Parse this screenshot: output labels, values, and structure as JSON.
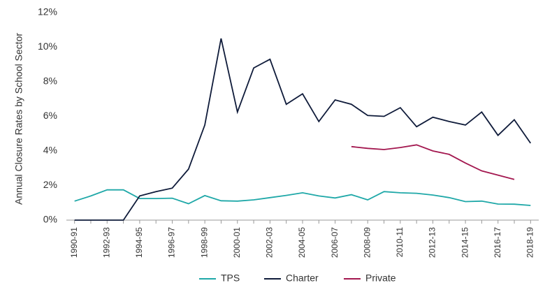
{
  "chart_data": {
    "type": "line",
    "y_label": "Annual Closure Rates by School Sector",
    "categories": [
      "1990-91",
      null,
      "1992-93",
      null,
      "1994-95",
      null,
      "1996-97",
      null,
      "1998-99",
      null,
      "2000-01",
      null,
      "2002-03",
      null,
      "2004-05",
      null,
      "2006-07",
      null,
      "2008-09",
      null,
      "2010-11",
      null,
      "2012-13",
      null,
      "2014-15",
      null,
      "2016-17",
      null,
      "2018-19"
    ],
    "series": [
      {
        "name": "TPS",
        "color": "#1fa8a8",
        "values": [
          1.1,
          1.4,
          1.75,
          1.75,
          1.25,
          1.25,
          1.27,
          0.95,
          1.42,
          1.12,
          1.1,
          1.17,
          1.3,
          1.43,
          1.58,
          1.4,
          1.28,
          1.47,
          1.17,
          1.65,
          1.58,
          1.55,
          1.45,
          1.3,
          1.07,
          1.1,
          0.93,
          0.92,
          0.85
        ]
      },
      {
        "name": "Charter",
        "color": "#0f1b3a",
        "values": [
          0,
          0,
          0,
          0,
          1.4,
          1.65,
          1.85,
          2.95,
          5.5,
          10.5,
          6.25,
          8.8,
          9.3,
          6.7,
          7.3,
          5.7,
          6.95,
          6.7,
          6.05,
          6.0,
          6.5,
          5.4,
          5.95,
          5.7,
          5.5,
          6.25,
          4.9,
          5.8,
          4.45
        ]
      },
      {
        "name": "Private",
        "color": "#a3174f",
        "values": [
          null,
          null,
          null,
          null,
          null,
          null,
          null,
          null,
          null,
          null,
          null,
          null,
          null,
          null,
          null,
          null,
          null,
          4.25,
          4.15,
          4.08,
          4.2,
          4.35,
          4.0,
          3.8,
          3.3,
          2.85,
          2.6,
          2.35,
          null
        ]
      }
    ],
    "ylim": [
      0,
      12
    ],
    "yticks": [
      {
        "value": 0,
        "label": "0%"
      },
      {
        "value": 2,
        "label": "2%"
      },
      {
        "value": 4,
        "label": "4%"
      },
      {
        "value": 6,
        "label": "6%"
      },
      {
        "value": 8,
        "label": "8%"
      },
      {
        "value": 10,
        "label": "10%"
      },
      {
        "value": 12,
        "label": "12%"
      }
    ],
    "legend": "bottom"
  }
}
